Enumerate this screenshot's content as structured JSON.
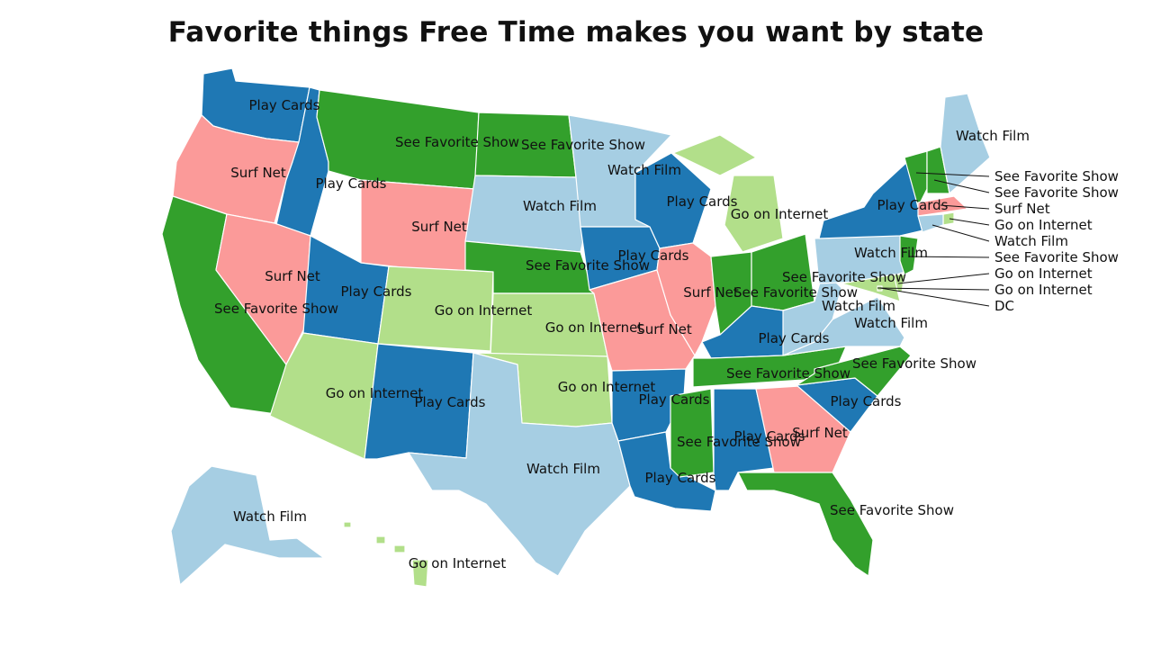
{
  "title": "Favorite things Free Time makes you want by state",
  "colors": {
    "Play Cards": "#1f78b4",
    "See Favorite Show": "#33a02c",
    "Surf Net": "#fb9a99",
    "Watch Film": "#a6cee3",
    "Go on Internet": "#b2df8a"
  },
  "states": [
    {
      "id": "WA",
      "value": "Play Cards"
    },
    {
      "id": "OR",
      "value": "Surf Net"
    },
    {
      "id": "CA",
      "value": "See Favorite Show"
    },
    {
      "id": "ID",
      "value": "Play Cards"
    },
    {
      "id": "NV",
      "value": "Surf Net"
    },
    {
      "id": "MT",
      "value": "See Favorite Show"
    },
    {
      "id": "WY",
      "value": "Surf Net"
    },
    {
      "id": "UT",
      "value": "Play Cards"
    },
    {
      "id": "AZ",
      "value": "Go on Internet"
    },
    {
      "id": "CO",
      "value": "Go on Internet"
    },
    {
      "id": "NM",
      "value": "Play Cards"
    },
    {
      "id": "ND",
      "value": "See Favorite Show"
    },
    {
      "id": "SD",
      "value": "Watch Film"
    },
    {
      "id": "NE",
      "value": "See Favorite Show"
    },
    {
      "id": "KS",
      "value": "Go on Internet"
    },
    {
      "id": "OK",
      "value": "Go on Internet"
    },
    {
      "id": "TX",
      "value": "Watch Film"
    },
    {
      "id": "MN",
      "value": "Watch Film"
    },
    {
      "id": "IA",
      "value": "Play Cards"
    },
    {
      "id": "MO",
      "value": "Surf Net"
    },
    {
      "id": "AR",
      "value": "Play Cards"
    },
    {
      "id": "LA",
      "value": "Play Cards"
    },
    {
      "id": "WI",
      "value": "Play Cards"
    },
    {
      "id": "IL",
      "value": "Surf Net"
    },
    {
      "id": "MI",
      "value": "Go on Internet"
    },
    {
      "id": "IN",
      "value": "See Favorite Show"
    },
    {
      "id": "OH",
      "value": "See Favorite Show"
    },
    {
      "id": "KY",
      "value": "Play Cards"
    },
    {
      "id": "TN",
      "value": "See Favorite Show"
    },
    {
      "id": "MS",
      "value": "See Favorite Show"
    },
    {
      "id": "AL",
      "value": "Play Cards"
    },
    {
      "id": "GA",
      "value": "Surf Net"
    },
    {
      "id": "FL",
      "value": "See Favorite Show"
    },
    {
      "id": "SC",
      "value": "Play Cards"
    },
    {
      "id": "NC",
      "value": "See Favorite Show"
    },
    {
      "id": "VA",
      "value": "Watch Film"
    },
    {
      "id": "WV",
      "value": "Watch Film"
    },
    {
      "id": "PA",
      "value": "Watch Film"
    },
    {
      "id": "NY",
      "value": "Play Cards"
    },
    {
      "id": "VT",
      "value": "See Favorite Show"
    },
    {
      "id": "NH",
      "value": "See Favorite Show"
    },
    {
      "id": "ME",
      "value": "Watch Film"
    },
    {
      "id": "MA",
      "value": "Surf Net"
    },
    {
      "id": "RI",
      "value": "Go on Internet"
    },
    {
      "id": "CT",
      "value": "Watch Film"
    },
    {
      "id": "NJ",
      "value": "See Favorite Show"
    },
    {
      "id": "DE",
      "value": "Go on Internet"
    },
    {
      "id": "MD",
      "value": "Go on Internet"
    },
    {
      "id": "DC",
      "value": "DC"
    },
    {
      "id": "AK",
      "value": "Watch Film"
    },
    {
      "id": "HI",
      "value": "Go on Internet"
    }
  ]
}
